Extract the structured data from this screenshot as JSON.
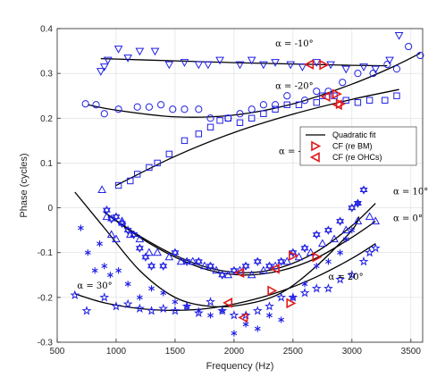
{
  "chart_data": {
    "type": "scatter",
    "xlabel": "Frequency (Hz)",
    "ylabel": "Phase (cycles)",
    "xlim": [
      500,
      3600
    ],
    "ylim": [
      -0.3,
      0.4
    ],
    "x_ticks": [
      500,
      1000,
      1500,
      2000,
      2500,
      3000,
      3500
    ],
    "y_ticks": [
      -0.3,
      -0.2,
      -0.1,
      0,
      0.1,
      0.2,
      0.3,
      0.4
    ],
    "grid": true,
    "legend": {
      "placement": "right",
      "entries": [
        {
          "label": "Quadratic fit",
          "marker": "line"
        },
        {
          "label": "CF (re BM)",
          "marker": "triangle-right"
        },
        {
          "label": "CF (re OHCs)",
          "marker": "triangle-left"
        }
      ]
    },
    "colors": {
      "data": "#1f1fe6",
      "fit": "#000000",
      "cf": "#e01b1b"
    },
    "series": [
      {
        "label": "α = -10°",
        "marker": "triangle-down",
        "points": [
          [
            870,
            0.305
          ],
          [
            900,
            0.315
          ],
          [
            930,
            0.33
          ],
          [
            1020,
            0.355
          ],
          [
            1100,
            0.335
          ],
          [
            1200,
            0.35
          ],
          [
            1330,
            0.35
          ],
          [
            1450,
            0.32
          ],
          [
            1580,
            0.325
          ],
          [
            1700,
            0.32
          ],
          [
            1780,
            0.32
          ],
          [
            1880,
            0.33
          ],
          [
            2050,
            0.32
          ],
          [
            2150,
            0.33
          ],
          [
            2250,
            0.32
          ],
          [
            2350,
            0.325
          ],
          [
            2480,
            0.32
          ],
          [
            2580,
            0.315
          ],
          [
            2700,
            0.325
          ],
          [
            2820,
            0.32
          ],
          [
            2950,
            0.31
          ],
          [
            3100,
            0.315
          ],
          [
            3200,
            0.31
          ],
          [
            3320,
            0.33
          ],
          [
            3400,
            0.385
          ]
        ],
        "fit": [
          [
            870,
            0.333
          ],
          [
            1500,
            0.328
          ],
          [
            2000,
            0.324
          ],
          [
            2500,
            0.321
          ],
          [
            3000,
            0.318
          ],
          [
            3300,
            0.317
          ]
        ],
        "cf_bm": [
          2760,
          0.319
        ],
        "cf_ohc": [
          2640,
          0.32
        ]
      },
      {
        "label": "α = -20°",
        "marker": "circle",
        "points": [
          [
            740,
            0.232
          ],
          [
            830,
            0.23
          ],
          [
            900,
            0.21
          ],
          [
            1020,
            0.22
          ],
          [
            1180,
            0.225
          ],
          [
            1280,
            0.225
          ],
          [
            1380,
            0.23
          ],
          [
            1480,
            0.22
          ],
          [
            1580,
            0.22
          ],
          [
            1700,
            0.22
          ],
          [
            1800,
            0.2
          ],
          [
            1950,
            0.2
          ],
          [
            2050,
            0.21
          ],
          [
            2150,
            0.22
          ],
          [
            2250,
            0.23
          ],
          [
            2350,
            0.23
          ],
          [
            2450,
            0.25
          ],
          [
            2600,
            0.24
          ],
          [
            2700,
            0.26
          ],
          [
            2800,
            0.26
          ],
          [
            2920,
            0.28
          ],
          [
            3050,
            0.3
          ],
          [
            3180,
            0.3
          ],
          [
            3300,
            0.32
          ],
          [
            3380,
            0.31
          ],
          [
            3480,
            0.36
          ],
          [
            3580,
            0.34
          ]
        ],
        "fit": [
          [
            760,
            0.23
          ],
          [
            1000,
            0.218
          ],
          [
            1500,
            0.203
          ],
          [
            2000,
            0.207
          ],
          [
            2500,
            0.232
          ],
          [
            3000,
            0.276
          ],
          [
            3350,
            0.315
          ],
          [
            3580,
            0.345
          ]
        ],
        "cf_bm": [
          2870,
          0.254
        ],
        "cf_ohc": [
          2780,
          0.248
        ]
      },
      {
        "label": "α = -30°",
        "marker": "square",
        "points": [
          [
            1020,
            0.05
          ],
          [
            1120,
            0.06
          ],
          [
            1180,
            0.075
          ],
          [
            1280,
            0.09
          ],
          [
            1350,
            0.1
          ],
          [
            1450,
            0.12
          ],
          [
            1580,
            0.15
          ],
          [
            1700,
            0.165
          ],
          [
            1800,
            0.18
          ],
          [
            1880,
            0.195
          ],
          [
            1950,
            0.2
          ],
          [
            2050,
            0.19
          ],
          [
            2150,
            0.2
          ],
          [
            2250,
            0.21
          ],
          [
            2350,
            0.22
          ],
          [
            2450,
            0.23
          ],
          [
            2550,
            0.23
          ],
          [
            2700,
            0.235
          ],
          [
            2750,
            0.25
          ],
          [
            2850,
            0.25
          ],
          [
            2950,
            0.24
          ],
          [
            3050,
            0.235
          ],
          [
            3150,
            0.24
          ],
          [
            3280,
            0.24
          ],
          [
            3380,
            0.25
          ]
        ],
        "fit": [
          [
            1000,
            0.05
          ],
          [
            1500,
            0.115
          ],
          [
            2000,
            0.168
          ],
          [
            2500,
            0.209
          ],
          [
            3000,
            0.242
          ],
          [
            3400,
            0.264
          ]
        ],
        "cf_bm": [
          2900,
          0.232
        ],
        "cf_ohc": [
          2880,
          0.23
        ]
      },
      {
        "label": "α = 10°",
        "marker": "hexagram",
        "points": [
          [
            920,
            -0.005
          ],
          [
            960,
            -0.025
          ],
          [
            1000,
            -0.02
          ],
          [
            1050,
            -0.035
          ],
          [
            1100,
            -0.05
          ],
          [
            1150,
            -0.06
          ],
          [
            1200,
            -0.09
          ],
          [
            1250,
            -0.11
          ],
          [
            1300,
            -0.13
          ],
          [
            1400,
            -0.13
          ],
          [
            1500,
            -0.1
          ],
          [
            1600,
            -0.12
          ],
          [
            1700,
            -0.12
          ],
          [
            1800,
            -0.13
          ],
          [
            1900,
            -0.15
          ],
          [
            2000,
            -0.14
          ],
          [
            2100,
            -0.13
          ],
          [
            2200,
            -0.12
          ],
          [
            2300,
            -0.13
          ],
          [
            2400,
            -0.12
          ],
          [
            2500,
            -0.1
          ],
          [
            2600,
            -0.09
          ],
          [
            2700,
            -0.06
          ],
          [
            2800,
            -0.05
          ],
          [
            2900,
            -0.03
          ],
          [
            3000,
            0.0
          ],
          [
            3050,
            0.01
          ],
          [
            3100,
            0.04
          ]
        ],
        "fit": [
          [
            900,
            -0.01
          ],
          [
            1200,
            -0.063
          ],
          [
            1500,
            -0.106
          ],
          [
            1800,
            -0.135
          ],
          [
            2100,
            -0.145
          ],
          [
            2400,
            -0.133
          ],
          [
            2700,
            -0.098
          ],
          [
            3000,
            -0.04
          ],
          [
            3200,
            0.01
          ]
        ],
        "cf_bm": [
          2500,
          -0.107
        ],
        "cf_ohc": [
          2050,
          -0.145
        ]
      },
      {
        "label": "α = 0°",
        "marker": "triangle-up",
        "points": [
          [
            880,
            0.04
          ],
          [
            920,
            -0.02
          ],
          [
            960,
            -0.06
          ],
          [
            1000,
            -0.07
          ],
          [
            1050,
            -0.03
          ],
          [
            1120,
            -0.06
          ],
          [
            1200,
            -0.07
          ],
          [
            1280,
            -0.1
          ],
          [
            1350,
            -0.1
          ],
          [
            1450,
            -0.11
          ],
          [
            1550,
            -0.12
          ],
          [
            1650,
            -0.12
          ],
          [
            1750,
            -0.13
          ],
          [
            1850,
            -0.14
          ],
          [
            1950,
            -0.15
          ],
          [
            2050,
            -0.14
          ],
          [
            2150,
            -0.15
          ],
          [
            2250,
            -0.14
          ],
          [
            2350,
            -0.13
          ],
          [
            2450,
            -0.12
          ],
          [
            2550,
            -0.11
          ],
          [
            2650,
            -0.1
          ],
          [
            2750,
            -0.08
          ],
          [
            2850,
            -0.07
          ],
          [
            2950,
            -0.05
          ],
          [
            3050,
            -0.03
          ],
          [
            3150,
            -0.02
          ],
          [
            3200,
            -0.03
          ]
        ],
        "fit": [
          [
            900,
            -0.01
          ],
          [
            1200,
            -0.066
          ],
          [
            1500,
            -0.11
          ],
          [
            1800,
            -0.14
          ],
          [
            2100,
            -0.15
          ],
          [
            2400,
            -0.14
          ],
          [
            2700,
            -0.112
          ],
          [
            3000,
            -0.066
          ],
          [
            3200,
            -0.03
          ]
        ],
        "cf_bm": [
          2700,
          -0.11
        ],
        "cf_ohc": [
          2350,
          -0.136
        ]
      },
      {
        "label": "α = 20°",
        "marker": "asterisk",
        "points": [
          [
            700,
            -0.045
          ],
          [
            760,
            -0.1
          ],
          [
            820,
            -0.14
          ],
          [
            860,
            -0.08
          ],
          [
            900,
            -0.13
          ],
          [
            950,
            -0.15
          ],
          [
            1020,
            -0.14
          ],
          [
            1100,
            -0.17
          ],
          [
            1200,
            -0.2
          ],
          [
            1300,
            -0.18
          ],
          [
            1400,
            -0.19
          ],
          [
            1500,
            -0.21
          ],
          [
            1600,
            -0.22
          ],
          [
            1700,
            -0.23
          ],
          [
            1800,
            -0.24
          ],
          [
            1900,
            -0.23
          ],
          [
            2000,
            -0.28
          ],
          [
            2100,
            -0.26
          ],
          [
            2200,
            -0.27
          ],
          [
            2300,
            -0.24
          ],
          [
            2400,
            -0.25
          ],
          [
            2500,
            -0.2
          ],
          [
            2600,
            -0.17
          ],
          [
            2700,
            -0.13
          ],
          [
            2800,
            -0.12
          ],
          [
            2900,
            -0.1
          ],
          [
            2950,
            -0.07
          ],
          [
            3000,
            -0.05
          ],
          [
            3050,
            0.01
          ]
        ],
        "fit": [
          [
            650,
            0.035
          ],
          [
            900,
            -0.045
          ],
          [
            1200,
            -0.14
          ],
          [
            1500,
            -0.2
          ],
          [
            1800,
            -0.22
          ],
          [
            2100,
            -0.215
          ],
          [
            2400,
            -0.19
          ],
          [
            2700,
            -0.13
          ],
          [
            3000,
            -0.05
          ],
          [
            3060,
            -0.02
          ]
        ],
        "cf_bm": [
          2320,
          -0.185
        ],
        "cf_ohc": [
          1950,
          -0.212
        ]
      },
      {
        "label": "α = 30°",
        "marker": "pentagram",
        "points": [
          [
            650,
            -0.195
          ],
          [
            750,
            -0.23
          ],
          [
            900,
            -0.2
          ],
          [
            1000,
            -0.22
          ],
          [
            1100,
            -0.215
          ],
          [
            1200,
            -0.225
          ],
          [
            1300,
            -0.23
          ],
          [
            1400,
            -0.225
          ],
          [
            1500,
            -0.23
          ],
          [
            1600,
            -0.22
          ],
          [
            1700,
            -0.235
          ],
          [
            1800,
            -0.21
          ],
          [
            1900,
            -0.23
          ],
          [
            2000,
            -0.24
          ],
          [
            2100,
            -0.24
          ],
          [
            2200,
            -0.23
          ],
          [
            2300,
            -0.22
          ],
          [
            2400,
            -0.2
          ],
          [
            2500,
            -0.2
          ],
          [
            2600,
            -0.19
          ],
          [
            2700,
            -0.18
          ],
          [
            2800,
            -0.18
          ],
          [
            2900,
            -0.16
          ],
          [
            3000,
            -0.15
          ],
          [
            3100,
            -0.12
          ],
          [
            3150,
            -0.1
          ],
          [
            3200,
            -0.09
          ]
        ],
        "fit": [
          [
            650,
            -0.192
          ],
          [
            900,
            -0.212
          ],
          [
            1200,
            -0.225
          ],
          [
            1500,
            -0.229
          ],
          [
            1800,
            -0.224
          ],
          [
            2100,
            -0.209
          ],
          [
            2400,
            -0.186
          ],
          [
            2700,
            -0.154
          ],
          [
            3000,
            -0.113
          ],
          [
            3200,
            -0.08
          ]
        ],
        "cf_bm": [
          2480,
          -0.213
        ],
        "cf_ohc": [
          2080,
          -0.245
        ]
      }
    ],
    "annotations": [
      {
        "text": "α = -10°",
        "x": 2350,
        "y": 0.36
      },
      {
        "text": "α = -20°",
        "x": 2350,
        "y": 0.265
      },
      {
        "text": "α = -30°",
        "x": 2380,
        "y": 0.12
      },
      {
        "text": "α = 10°",
        "x": 3350,
        "y": 0.03
      },
      {
        "text": "α = 0°",
        "x": 3350,
        "y": -0.03
      },
      {
        "text": "α = 20°",
        "x": 2800,
        "y": -0.16
      },
      {
        "text": "α = 30°",
        "x": 670,
        "y": -0.18
      }
    ]
  }
}
